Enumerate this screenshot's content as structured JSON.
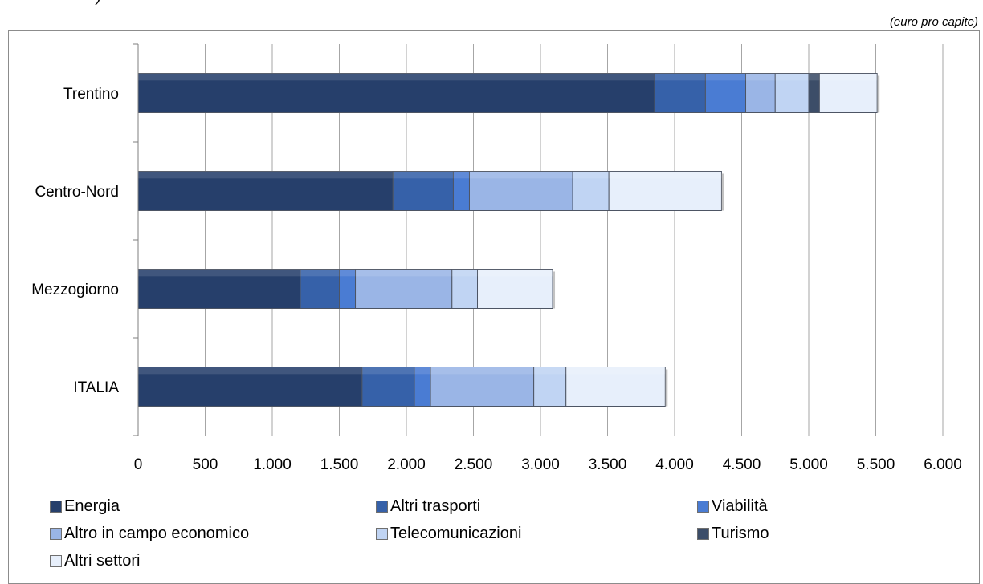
{
  "header": {
    "fragment": ")",
    "unit_note": "(euro pro capite)"
  },
  "legend": [
    {
      "label": "Energia",
      "color": "#263f6b"
    },
    {
      "label": "Altri trasporti",
      "color": "#3661a9"
    },
    {
      "label": "Viabilità",
      "color": "#4a7cd3"
    },
    {
      "label": "Altro in campo economico",
      "color": "#9ab5e6"
    },
    {
      "label": "Telecomunicazioni",
      "color": "#c0d4f3"
    },
    {
      "label": "Turismo",
      "color": "#3c4d68"
    },
    {
      "label": "Altri settori",
      "color": "#e7effb"
    }
  ],
  "chart_data": {
    "type": "bar",
    "orientation": "horizontal",
    "stacked": true,
    "categories": [
      "Trentino",
      "Centro-Nord",
      "Mezzogiorno",
      "ITALIA"
    ],
    "xlim": [
      0,
      6000
    ],
    "x_ticks": [
      0,
      500,
      1000,
      1500,
      2000,
      2500,
      3000,
      3500,
      4000,
      4500,
      5000,
      5500,
      6000
    ],
    "x_tick_labels": [
      "0",
      "500",
      "1.000",
      "1.500",
      "2.000",
      "2.500",
      "3.000",
      "3.500",
      "4.000",
      "4.500",
      "5.000",
      "5.500",
      "6.000"
    ],
    "grid": "vertical",
    "legend_position": "bottom",
    "series": [
      {
        "name": "Energia",
        "values": [
          3850,
          1900,
          1210,
          1670
        ]
      },
      {
        "name": "Altri trasporti",
        "values": [
          380,
          450,
          290,
          390
        ]
      },
      {
        "name": "Viabilità",
        "values": [
          300,
          120,
          120,
          120
        ]
      },
      {
        "name": "Altro in campo economico",
        "values": [
          220,
          770,
          720,
          770
        ]
      },
      {
        "name": "Telecomunicazioni",
        "values": [
          250,
          270,
          190,
          240
        ]
      },
      {
        "name": "Turismo",
        "values": [
          80,
          0,
          0,
          0
        ]
      },
      {
        "name": "Altri settori",
        "values": [
          430,
          840,
          560,
          740
        ]
      }
    ]
  }
}
